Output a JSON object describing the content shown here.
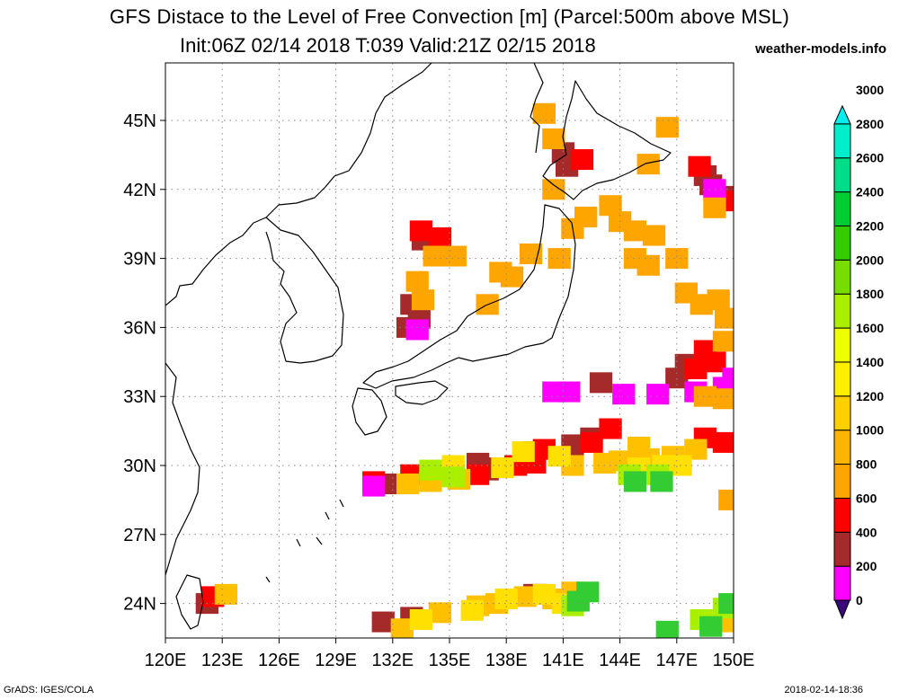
{
  "header": {
    "title": "GFS Distace to the Level of Free Convection [m] (Parcel:500m above MSL)",
    "subtitle": "Init:06Z 02/14 2018 T:039 Valid:21Z 02/15 2018",
    "brand": "weather-models.info"
  },
  "footer": {
    "left": "GrADS: IGES/COLA",
    "right": "2018-02-14-18:36"
  },
  "axes": {
    "lon_ticks": [
      "120E",
      "123E",
      "126E",
      "129E",
      "132E",
      "135E",
      "138E",
      "141E",
      "144E",
      "147E",
      "150E"
    ],
    "lat_ticks": [
      "24N",
      "27N",
      "30N",
      "33N",
      "36N",
      "39N",
      "42N",
      "45N"
    ],
    "lon_range": [
      120,
      150
    ],
    "lat_range": [
      22.5,
      47.5
    ],
    "grid": "dotted"
  },
  "colorbar": {
    "labels": [
      "0",
      "200",
      "400",
      "600",
      "800",
      "1000",
      "1200",
      "1400",
      "1600",
      "1800",
      "2000",
      "2200",
      "2400",
      "2600",
      "2800",
      "3000"
    ],
    "colors": [
      "#3a0a7a",
      "#ff00ff",
      "#a52a2a",
      "#ff0000",
      "#ffa500",
      "#ffb400",
      "#ffd000",
      "#ffee00",
      "#eeff00",
      "#aaee00",
      "#77dd00",
      "#33cc00",
      "#00cc33",
      "#00dd88",
      "#00eecc",
      "#00eeee"
    ]
  },
  "palette": {
    "magenta": "#ff00ff",
    "brown": "#a52a2a",
    "red": "#ff0000",
    "orange": "#ffa500",
    "amber": "#ffc000",
    "yellow": "#ffe000",
    "lime": "#aaee00",
    "green": "#33cc33"
  },
  "map_data": {
    "units": "lon/lat degrees",
    "regions": [
      {
        "color": "brown",
        "cells": [
          [
            141.0,
            43.6
          ],
          [
            141.6,
            43.3
          ],
          [
            141.2,
            43.0
          ],
          [
            148.5,
            42.6
          ],
          [
            148.8,
            42.2
          ],
          [
            149.5,
            41.7
          ],
          [
            133.0,
            37.0
          ],
          [
            133.4,
            36.4
          ],
          [
            132.8,
            36.0
          ],
          [
            133.6,
            39.8
          ],
          [
            143.0,
            33.6
          ],
          [
            141.5,
            30.9
          ],
          [
            139.5,
            30.6
          ],
          [
            142.5,
            31.2
          ],
          [
            137.5,
            29.9
          ],
          [
            132.0,
            29.2
          ],
          [
            136.5,
            30.1
          ],
          [
            137.0,
            29.8
          ],
          [
            147.0,
            33.8
          ],
          [
            147.5,
            34.4
          ],
          [
            131.5,
            23.2
          ],
          [
            133.0,
            23.4
          ],
          [
            122.2,
            24.0
          ],
          [
            139.5,
            24.4
          ]
        ]
      },
      {
        "color": "red",
        "cells": [
          [
            148.2,
            43.0
          ],
          [
            142.0,
            43.3
          ],
          [
            149.5,
            41.5
          ],
          [
            134.5,
            39.9
          ],
          [
            133.5,
            40.2
          ],
          [
            148.5,
            35.0
          ],
          [
            149.0,
            34.5
          ],
          [
            148.0,
            34.2
          ],
          [
            139.5,
            30.1
          ],
          [
            138.5,
            30.0
          ],
          [
            140.0,
            30.7
          ],
          [
            142.5,
            31.0
          ],
          [
            143.5,
            31.6
          ],
          [
            148.5,
            31.2
          ],
          [
            149.5,
            31.0
          ],
          [
            133.0,
            29.6
          ],
          [
            131.0,
            29.3
          ],
          [
            136.5,
            29.6
          ],
          [
            122.5,
            24.3
          ]
        ]
      },
      {
        "color": "magenta",
        "cells": [
          [
            133.3,
            35.9
          ],
          [
            149.0,
            42.0
          ],
          [
            140.5,
            33.2
          ],
          [
            141.3,
            33.2
          ],
          [
            148.0,
            33.2
          ],
          [
            149.5,
            33.4
          ],
          [
            150.0,
            33.8
          ],
          [
            131.0,
            29.1
          ],
          [
            144.2,
            33.1
          ],
          [
            146.0,
            33.1
          ]
        ]
      },
      {
        "color": "orange",
        "cells": [
          [
            133.3,
            38.0
          ],
          [
            133.6,
            37.2
          ],
          [
            137.7,
            38.4
          ],
          [
            138.3,
            38.2
          ],
          [
            137.0,
            37.0
          ],
          [
            140.8,
            39.0
          ],
          [
            144.8,
            39.0
          ],
          [
            145.5,
            38.7
          ],
          [
            147.0,
            39.0
          ],
          [
            147.5,
            37.5
          ],
          [
            148.3,
            37.0
          ],
          [
            149.2,
            37.2
          ],
          [
            149.6,
            36.4
          ],
          [
            149.5,
            35.4
          ],
          [
            148.5,
            33.0
          ],
          [
            149.5,
            32.9
          ],
          [
            149.8,
            28.5
          ],
          [
            140.0,
            45.3
          ],
          [
            140.5,
            44.2
          ],
          [
            146.5,
            44.7
          ],
          [
            145.5,
            43.1
          ],
          [
            141.5,
            40.3
          ],
          [
            142.2,
            40.8
          ],
          [
            143.5,
            41.3
          ],
          [
            144.0,
            40.6
          ],
          [
            144.8,
            40.2
          ],
          [
            145.8,
            40.0
          ],
          [
            139.3,
            39.2
          ],
          [
            140.5,
            42.0
          ],
          [
            134.2,
            39.1
          ],
          [
            135.3,
            39.1
          ],
          [
            149.0,
            41.2
          ]
        ]
      },
      {
        "color": "amber",
        "cells": [
          [
            144.0,
            30.2
          ],
          [
            145.5,
            30.3
          ],
          [
            146.8,
            30.4
          ],
          [
            148.0,
            30.7
          ],
          [
            145.0,
            30.8
          ],
          [
            143.2,
            30.1
          ],
          [
            141.5,
            30.0
          ],
          [
            134.0,
            29.3
          ],
          [
            135.5,
            29.4
          ],
          [
            132.8,
            29.2
          ],
          [
            136.5,
            23.9
          ],
          [
            134.5,
            23.6
          ],
          [
            137.5,
            24.0
          ],
          [
            139.0,
            24.3
          ],
          [
            140.5,
            24.2
          ],
          [
            141.5,
            24.5
          ],
          [
            132.5,
            22.9
          ],
          [
            149.5,
            23.2
          ],
          [
            123.2,
            24.4
          ]
        ]
      },
      {
        "color": "yellow",
        "cells": [
          [
            137.8,
            29.9
          ],
          [
            138.9,
            30.6
          ],
          [
            140.8,
            30.4
          ],
          [
            145.0,
            29.9
          ],
          [
            146.3,
            30.0
          ],
          [
            147.2,
            30.0
          ],
          [
            135.2,
            30.0
          ],
          [
            134.8,
            29.8
          ],
          [
            136.2,
            23.7
          ],
          [
            138.0,
            24.2
          ],
          [
            140.0,
            24.4
          ],
          [
            141.0,
            24.0
          ],
          [
            133.5,
            23.3
          ]
        ]
      },
      {
        "color": "lime",
        "cells": [
          [
            134.0,
            29.8
          ],
          [
            135.2,
            29.5
          ],
          [
            144.5,
            29.6
          ],
          [
            146.0,
            29.6
          ],
          [
            148.3,
            23.3
          ],
          [
            149.5,
            23.8
          ],
          [
            141.5,
            23.9
          ]
        ]
      },
      {
        "color": "green",
        "cells": [
          [
            141.8,
            24.1
          ],
          [
            142.3,
            24.5
          ],
          [
            146.5,
            22.8
          ],
          [
            148.8,
            23.0
          ],
          [
            149.8,
            24.0
          ],
          [
            144.8,
            29.3
          ],
          [
            146.2,
            29.3
          ]
        ]
      }
    ]
  }
}
